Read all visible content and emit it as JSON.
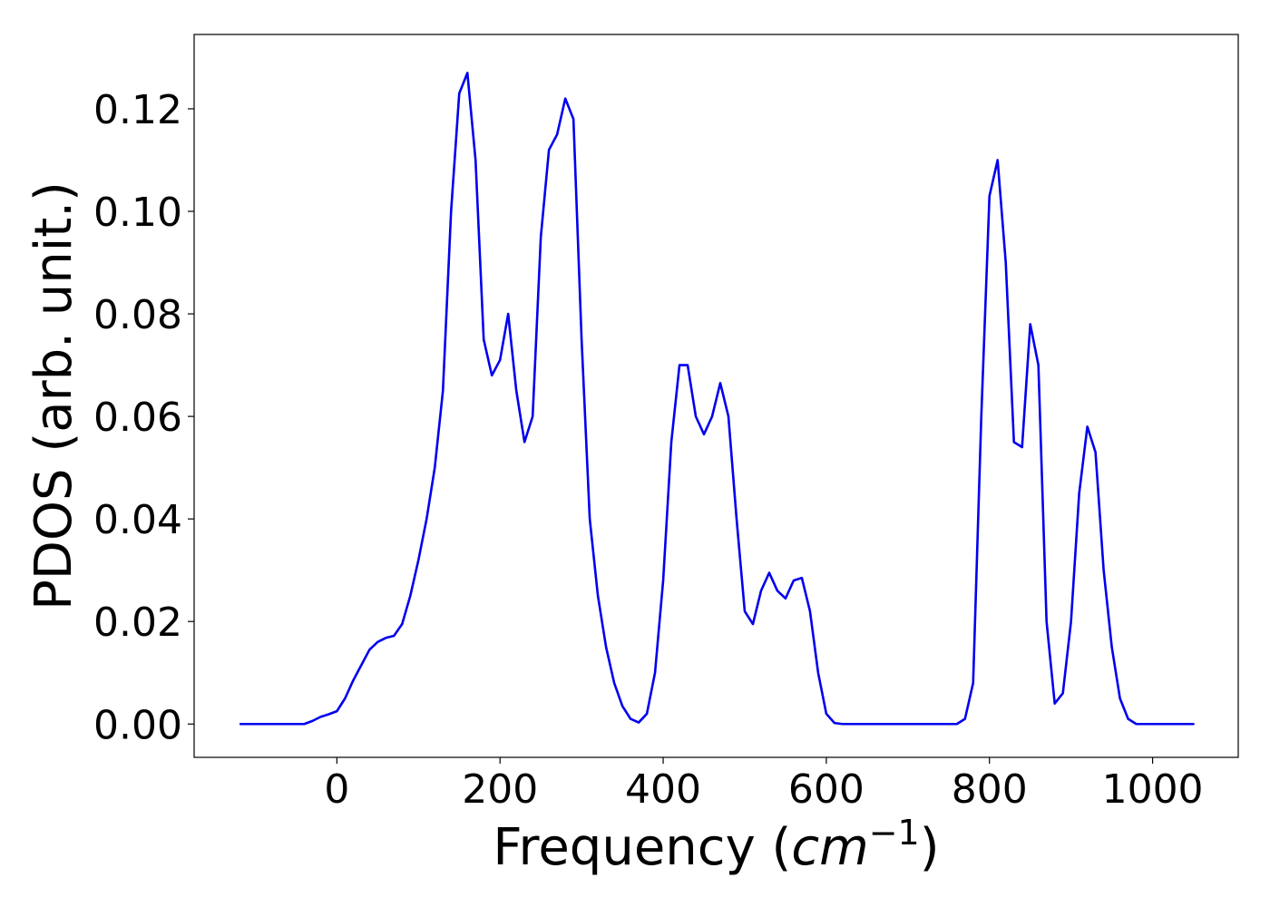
{
  "chart_data": {
    "type": "line",
    "title": "",
    "xlabel": {
      "main": "Frequency (",
      "math_base": "cm",
      "math_sup": "−1",
      "close": ")"
    },
    "ylabel": "PDOS (arb. unit.)",
    "xlim": [
      -175,
      1105
    ],
    "ylim": [
      -0.0065,
      0.1345
    ],
    "xticks": [
      0,
      200,
      400,
      600,
      800,
      1000
    ],
    "xtick_labels": [
      "0",
      "200",
      "400",
      "600",
      "800",
      "1000"
    ],
    "yticks": [
      0.0,
      0.02,
      0.04,
      0.06,
      0.08,
      0.1,
      0.12
    ],
    "ytick_labels": [
      "0.00",
      "0.02",
      "0.04",
      "0.06",
      "0.08",
      "0.10",
      "0.12"
    ],
    "grid": false,
    "legend": "none",
    "series": [
      {
        "color": "#0000ee",
        "x": [
          -118,
          -40,
          -30,
          -20,
          -10,
          0,
          10,
          20,
          30,
          40,
          50,
          60,
          70,
          80,
          90,
          100,
          110,
          120,
          130,
          140,
          150,
          160,
          170,
          180,
          190,
          200,
          210,
          220,
          230,
          240,
          250,
          260,
          270,
          280,
          290,
          300,
          310,
          320,
          330,
          340,
          350,
          360,
          370,
          380,
          390,
          400,
          410,
          420,
          430,
          440,
          450,
          460,
          470,
          480,
          490,
          500,
          510,
          520,
          530,
          540,
          550,
          560,
          570,
          580,
          590,
          600,
          610,
          620,
          660,
          700,
          760,
          770,
          780,
          790,
          800,
          810,
          820,
          830,
          840,
          850,
          860,
          870,
          880,
          890,
          900,
          910,
          920,
          930,
          940,
          950,
          960,
          970,
          980,
          1050
        ],
        "y": [
          0.0,
          0.0,
          0.0006,
          0.0014,
          0.0019,
          0.0025,
          0.005,
          0.0085,
          0.0115,
          0.0145,
          0.016,
          0.0168,
          0.0172,
          0.0195,
          0.025,
          0.032,
          0.04,
          0.05,
          0.065,
          0.1,
          0.123,
          0.127,
          0.11,
          0.075,
          0.068,
          0.071,
          0.08,
          0.065,
          0.055,
          0.06,
          0.095,
          0.112,
          0.115,
          0.122,
          0.118,
          0.075,
          0.04,
          0.025,
          0.015,
          0.008,
          0.0035,
          0.001,
          0.0003,
          0.002,
          0.01,
          0.028,
          0.055,
          0.07,
          0.07,
          0.06,
          0.0565,
          0.06,
          0.0665,
          0.06,
          0.04,
          0.022,
          0.0195,
          0.026,
          0.0295,
          0.026,
          0.0245,
          0.028,
          0.0285,
          0.022,
          0.01,
          0.002,
          0.0002,
          0.0,
          0.0,
          0.0,
          0.0,
          0.001,
          0.008,
          0.06,
          0.103,
          0.11,
          0.09,
          0.055,
          0.054,
          0.078,
          0.07,
          0.02,
          0.004,
          0.006,
          0.02,
          0.045,
          0.058,
          0.053,
          0.03,
          0.015,
          0.005,
          0.001,
          0.0,
          0.0
        ]
      }
    ]
  }
}
